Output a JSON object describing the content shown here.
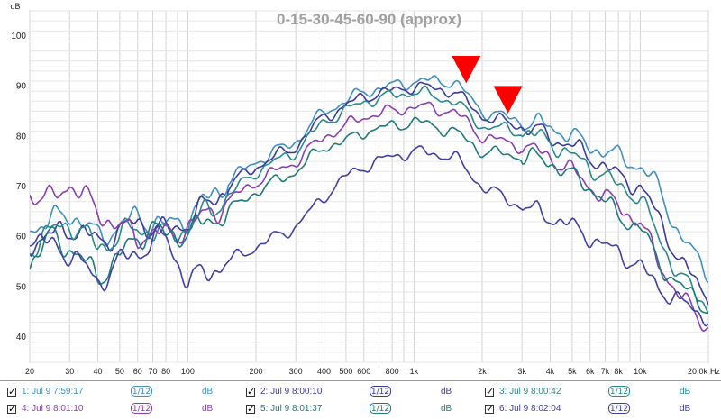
{
  "chart_data": {
    "type": "line",
    "title": "0-15-30-45-60-90 (approx)",
    "xlabel": "Hz",
    "ylabel": "dB",
    "x_scale": "log",
    "xlim": [
      20,
      20000
    ],
    "ylim": [
      35,
      105
    ],
    "grid": true,
    "y_ticks": [
      40,
      50,
      60,
      70,
      80,
      90,
      100
    ],
    "x_ticks": [
      20,
      30,
      40,
      50,
      60,
      70,
      80,
      100,
      200,
      300,
      400,
      500,
      600,
      800,
      1000,
      2000,
      3000,
      4000,
      5000,
      6000,
      7000,
      8000,
      10000,
      20000
    ],
    "x_tick_labels": [
      "20",
      "30",
      "40",
      "50",
      "60",
      "70",
      "80",
      "100",
      "200",
      "300",
      "400",
      "500",
      "600",
      "800",
      "1k",
      "2k",
      "3k",
      "4k",
      "5k",
      "6k",
      "7k",
      "8k",
      "10k",
      "20.0k"
    ],
    "markers": [
      {
        "x": 1700,
        "y": 91
      },
      {
        "x": 2600,
        "y": 85
      }
    ],
    "series": [
      {
        "name": "1: Jul 9 7:59:17",
        "color": "#3f8fbf",
        "x": [
          20,
          25,
          30,
          40,
          50,
          60,
          70,
          80,
          100,
          150,
          200,
          300,
          400,
          500,
          600,
          800,
          1000,
          1500,
          2000,
          3000,
          4000,
          5000,
          6000,
          7000,
          8000,
          10000,
          12000,
          15000,
          20000
        ],
        "y": [
          62,
          63,
          65,
          60,
          62,
          64,
          63,
          62,
          64,
          71,
          75,
          79,
          85,
          87,
          89,
          90,
          91,
          91,
          85,
          83,
          82,
          80,
          78,
          77,
          76,
          74,
          70,
          60,
          53
        ]
      },
      {
        "name": "2: Jul 9 8:00:10",
        "color": "#3b3b9a",
        "x": [
          20,
          25,
          30,
          40,
          50,
          60,
          70,
          80,
          100,
          150,
          200,
          300,
          400,
          500,
          600,
          800,
          1000,
          1500,
          2000,
          3000,
          4000,
          5000,
          6000,
          7000,
          8000,
          10000,
          12000,
          15000,
          20000
        ],
        "y": [
          59,
          60,
          62,
          59,
          61,
          63,
          62,
          61,
          63,
          70,
          74,
          78,
          84,
          86,
          88,
          89,
          90,
          89,
          84,
          82,
          80,
          78,
          76,
          74,
          72,
          70,
          64,
          55,
          48
        ]
      },
      {
        "name": "3: Jul 9 8:00:42",
        "color": "#2a8a8a",
        "x": [
          20,
          25,
          30,
          40,
          50,
          60,
          70,
          80,
          100,
          150,
          200,
          300,
          400,
          500,
          600,
          800,
          1000,
          1500,
          2000,
          3000,
          4000,
          5000,
          6000,
          7000,
          8000,
          10000,
          12000,
          15000,
          20000
        ],
        "y": [
          58,
          61,
          63,
          58,
          60,
          62,
          61,
          60,
          62,
          68,
          73,
          77,
          83,
          85,
          87,
          88,
          89,
          87,
          82,
          81,
          79,
          76,
          74,
          72,
          70,
          68,
          60,
          52,
          46
        ]
      },
      {
        "name": "4: Jul 9 8:01:10",
        "color": "#8a3fb0",
        "x": [
          20,
          25,
          30,
          40,
          50,
          60,
          70,
          80,
          100,
          150,
          200,
          300,
          400,
          500,
          600,
          800,
          1000,
          1500,
          2000,
          3000,
          4000,
          5000,
          6000,
          7000,
          8000,
          10000,
          12000,
          15000,
          20000
        ],
        "y": [
          69,
          67,
          71,
          65,
          62,
          60,
          61,
          60,
          62,
          67,
          71,
          75,
          80,
          82,
          84,
          85,
          86,
          85,
          80,
          78,
          76,
          73,
          70,
          68,
          66,
          63,
          55,
          48,
          42
        ]
      },
      {
        "name": "5: Jul 9 8:01:37",
        "color": "#1f7a7a",
        "x": [
          20,
          25,
          30,
          40,
          50,
          60,
          70,
          80,
          100,
          150,
          200,
          300,
          400,
          500,
          600,
          800,
          1000,
          1500,
          2000,
          3000,
          4000,
          5000,
          6000,
          7000,
          8000,
          10000,
          12000,
          15000,
          20000
        ],
        "y": [
          55,
          60,
          58,
          52,
          56,
          60,
          62,
          60,
          61,
          65,
          69,
          73,
          78,
          79,
          81,
          82,
          83,
          81,
          77,
          76,
          75,
          72,
          70,
          67,
          64,
          62,
          55,
          50,
          46
        ]
      },
      {
        "name": "6: Jul 9 8:02:04",
        "color": "#4040a0",
        "x": [
          20,
          25,
          30,
          40,
          50,
          60,
          70,
          80,
          100,
          150,
          200,
          300,
          400,
          500,
          600,
          800,
          1000,
          1500,
          2000,
          3000,
          4000,
          5000,
          6000,
          7000,
          8000,
          10000,
          12000,
          15000,
          20000
        ],
        "y": [
          60,
          58,
          57,
          51,
          55,
          57,
          59,
          60,
          51,
          55,
          58,
          62,
          68,
          72,
          74,
          76,
          77,
          76,
          70,
          66,
          64,
          62,
          60,
          58,
          57,
          54,
          50,
          47,
          44
        ]
      }
    ]
  },
  "legend": {
    "items": [
      {
        "label": "1: Jul 9 7:59:17",
        "smoothing": "1/12",
        "unit": "dB",
        "color": "#3f8fbf",
        "checked": true
      },
      {
        "label": "2: Jul 9 8:00:10",
        "smoothing": "1/12",
        "unit": "dB",
        "color": "#3b3b9a",
        "checked": true
      },
      {
        "label": "3: Jul 9 8:00:42",
        "smoothing": "1/12",
        "unit": "dB",
        "color": "#2a8a8a",
        "checked": true
      },
      {
        "label": "4: Jul 9 8:01:10",
        "smoothing": "1/12",
        "unit": "dB",
        "color": "#8a3fb0",
        "checked": true
      },
      {
        "label": "5: Jul 9 8:01:37",
        "smoothing": "1/12",
        "unit": "dB",
        "color": "#1f7a7a",
        "checked": true
      },
      {
        "label": "6: Jul 9 8:02:04",
        "smoothing": "1/12",
        "unit": "dB",
        "color": "#4040a0",
        "checked": true
      }
    ]
  }
}
